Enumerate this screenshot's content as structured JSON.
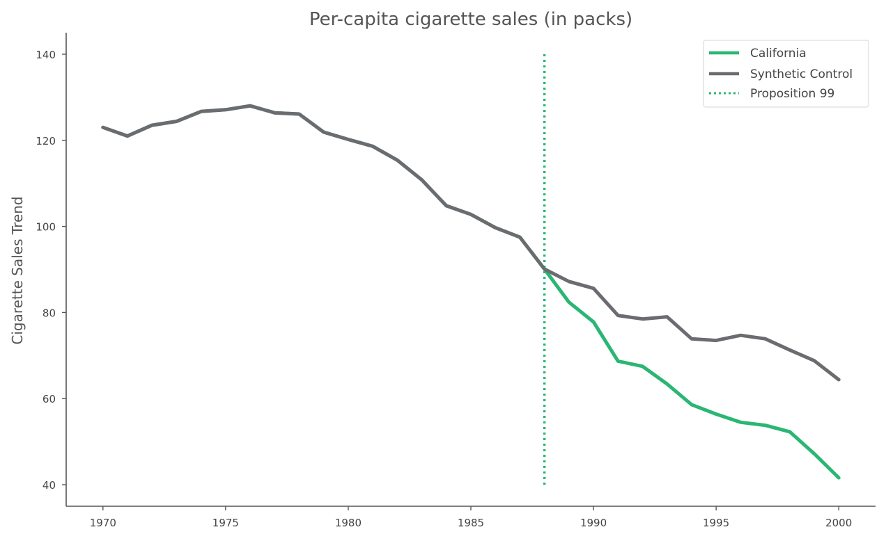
{
  "chart_data": {
    "type": "line",
    "title": "Per-capita cigarette sales (in packs)",
    "xlabel": "",
    "ylabel": "Cigarette Sales Trend",
    "xlim": [
      1968.5,
      2001.5
    ],
    "ylim": [
      35,
      145
    ],
    "x_ticks": [
      1970,
      1975,
      1980,
      1985,
      1990,
      1995,
      2000
    ],
    "y_ticks": [
      40,
      60,
      80,
      100,
      120,
      140
    ],
    "grid": false,
    "legend_position": "top-right",
    "x": [
      1970,
      1971,
      1972,
      1973,
      1974,
      1975,
      1976,
      1977,
      1978,
      1979,
      1980,
      1981,
      1982,
      1983,
      1984,
      1985,
      1986,
      1987,
      1988,
      1989,
      1990,
      1991,
      1992,
      1993,
      1994,
      1995,
      1996,
      1997,
      1998,
      1999,
      2000
    ],
    "series": [
      {
        "name": "California",
        "color": "#2ab673",
        "style": "solid",
        "values": [
          123.0,
          121.0,
          123.5,
          124.4,
          126.7,
          127.1,
          128.0,
          126.4,
          126.1,
          121.9,
          120.2,
          118.6,
          115.4,
          110.8,
          104.8,
          102.8,
          99.7,
          97.5,
          90.1,
          82.4,
          77.8,
          68.7,
          67.5,
          63.4,
          58.6,
          56.4,
          54.5,
          53.8,
          52.3,
          47.2,
          41.6
        ]
      },
      {
        "name": "Synthetic Control",
        "color": "#6b6b70",
        "style": "solid",
        "values": [
          123.0,
          121.0,
          123.5,
          124.4,
          126.7,
          127.1,
          128.0,
          126.4,
          126.1,
          121.9,
          120.2,
          118.6,
          115.4,
          110.8,
          104.8,
          102.8,
          99.7,
          97.5,
          90.1,
          87.2,
          85.6,
          79.3,
          78.5,
          79.0,
          73.9,
          73.5,
          74.7,
          73.9,
          71.3,
          68.8,
          64.4
        ]
      }
    ],
    "vlines": [
      {
        "name": "Proposition 99",
        "x": 1988,
        "y_range": [
          40,
          140
        ],
        "color": "#2ab673",
        "style": "dotted"
      }
    ]
  }
}
